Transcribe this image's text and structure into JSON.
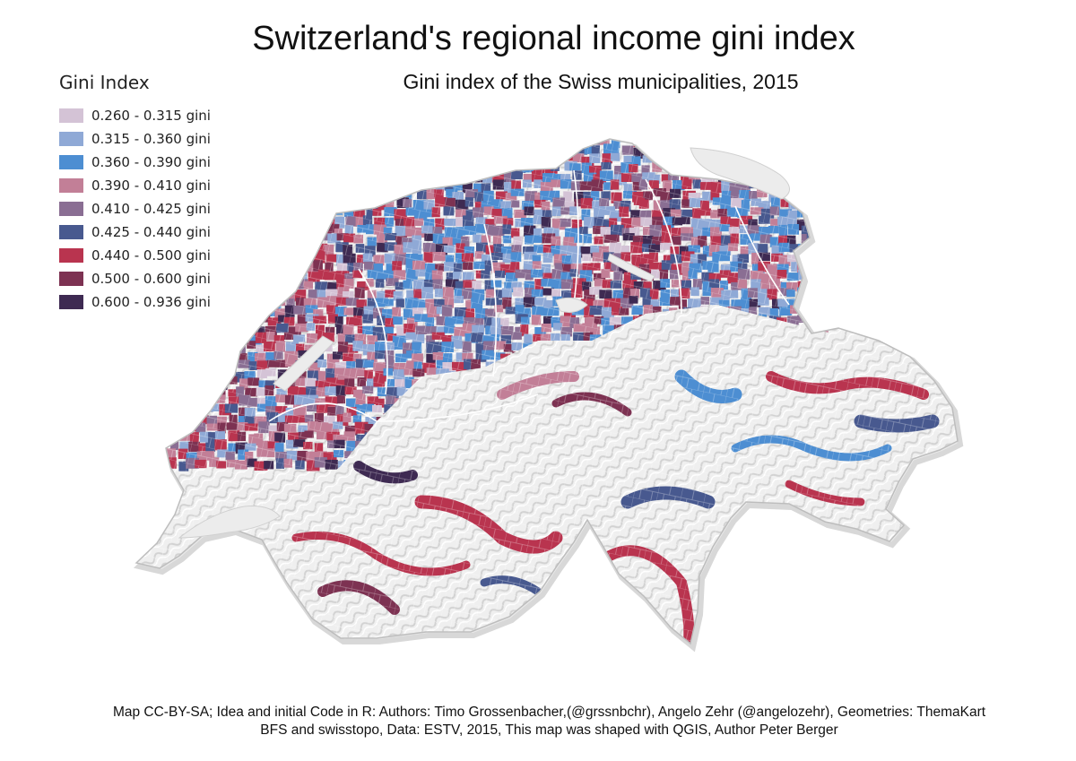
{
  "title": "Switzerland's regional income gini index",
  "subtitle": "Gini index of the Swiss municipalities, 2015",
  "legend": {
    "title": "Gini Index",
    "items": [
      {
        "label": "0.260 - 0.315 gini",
        "color": "#d4c3d6"
      },
      {
        "label": "0.315 - 0.360 gini",
        "color": "#8fa9d6"
      },
      {
        "label": "0.360 - 0.390 gini",
        "color": "#4d8ed2"
      },
      {
        "label": "0.390 - 0.410 gini",
        "color": "#c27f97"
      },
      {
        "label": "0.410 - 0.425 gini",
        "color": "#8a6e93"
      },
      {
        "label": "0.425 - 0.440 gini",
        "color": "#48598f"
      },
      {
        "label": "0.440 - 0.500 gini",
        "color": "#b9344f"
      },
      {
        "label": "0.500 - 0.600 gini",
        "color": "#7d3252"
      },
      {
        "label": "0.600 - 0.936 gini",
        "color": "#3e2a52"
      }
    ]
  },
  "credits": {
    "line1": "Map CC-BY-SA; Idea and initial Code in R: Authors: Timo Grossenbacher,(@grssnbchr), Angelo Zehr (@angelozehr), Geometries: ThemaKart",
    "line2": "BFS and swisstopo, Data: ESTV, 2015, This map was shaped with QGIS, Author Peter Berger"
  }
}
